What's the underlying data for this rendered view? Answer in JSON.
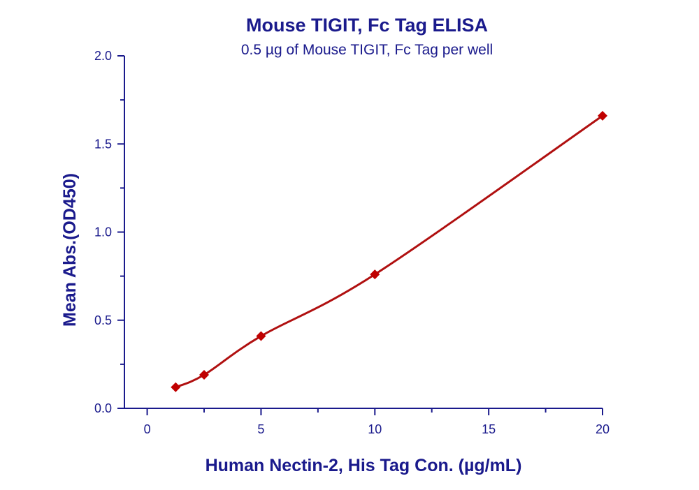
{
  "chart_data": {
    "type": "scatter",
    "title": "Mouse TIGIT, Fc Tag ELISA",
    "subtitle": "0.5 µg of Mouse TIGIT, Fc Tag per well",
    "xlabel": "Human Nectin-2, His Tag Con. (µg/mL)",
    "ylabel": "Mean Abs.(OD450)",
    "xlim": [
      -1,
      20
    ],
    "ylim": [
      0,
      2.0
    ],
    "x_ticks": [
      0,
      5,
      10,
      15,
      20
    ],
    "x_tick_labels": [
      "0",
      "5",
      "10",
      "15",
      "20"
    ],
    "y_ticks": [
      0.0,
      0.5,
      1.0,
      1.5,
      2.0
    ],
    "y_tick_labels": [
      "0.0",
      "0.5",
      "1.0",
      "1.5",
      "2.0"
    ],
    "grid": false,
    "fit_line": true,
    "series": [
      {
        "x": [
          1.25,
          2.5,
          5,
          10,
          20
        ],
        "y": [
          0.12,
          0.19,
          0.41,
          0.76,
          1.66
        ]
      }
    ],
    "colors": {
      "axis": "#1a1a8c",
      "marker": "#c00000",
      "line": "#b01010"
    }
  }
}
